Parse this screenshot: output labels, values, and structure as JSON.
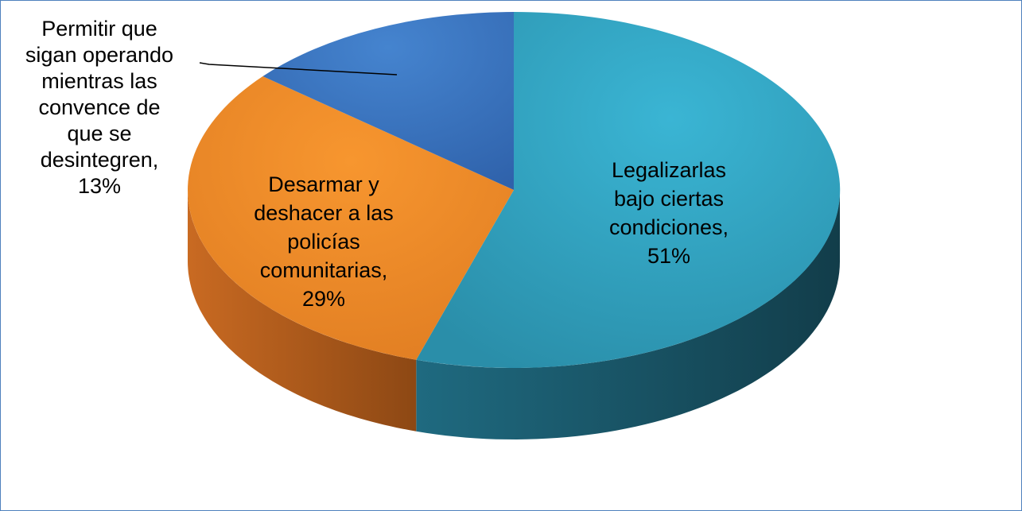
{
  "chart_data": {
    "type": "pie",
    "title": "",
    "style": "3d-exploded-tilt",
    "slices": [
      {
        "label_lines": [
          "Legalizarlas",
          "bajo ciertas",
          "condiciones,",
          "51%"
        ],
        "category": "Legalizarlas bajo ciertas condiciones",
        "value": 51,
        "color": "#31a4c4",
        "side_color": "#1c5f72"
      },
      {
        "label_lines": [
          "Desarmar y",
          "deshacer a las",
          "policías",
          "comunitarias,",
          "29%"
        ],
        "category": "Desarmar y deshacer a las policías comunitarias",
        "value": 29,
        "color": "#f38a2b",
        "side_color": "#a9561b"
      },
      {
        "label_lines": [
          "Permitir que",
          "sigan operando",
          "mientras las",
          "convence de",
          "que se",
          "desintegren,",
          "13%"
        ],
        "category": "Permitir que sigan operando mientras las convence de que se desintegren",
        "value": 13,
        "color": "#3b73c4",
        "side_color": "#244a80"
      }
    ],
    "legend": "none",
    "data_labels": "category-and-percent"
  }
}
